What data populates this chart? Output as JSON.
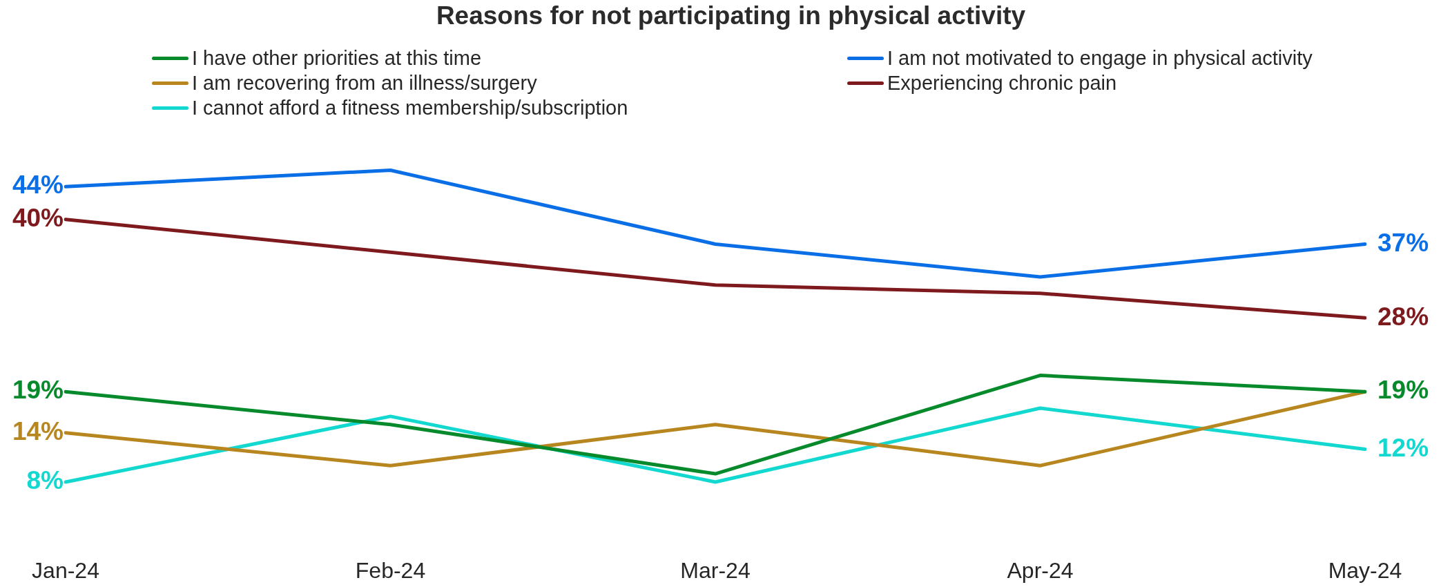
{
  "chart_data": {
    "type": "line",
    "title": "Reasons for not participating in physical activity",
    "categories": [
      "Jan-24",
      "Feb-24",
      "Mar-24",
      "Apr-24",
      "May-24"
    ],
    "series": [
      {
        "name": "I have other priorities at this time",
        "color": "#078a2b",
        "values": [
          19,
          15,
          9,
          21,
          19
        ],
        "value_labels": [
          "19%",
          null,
          null,
          null,
          "19%"
        ]
      },
      {
        "name": "I am not motivated to engage in physical activity",
        "color": "#0a6fe6",
        "values": [
          44,
          46,
          37,
          33,
          37
        ],
        "value_labels": [
          "44%",
          null,
          null,
          null,
          "37%"
        ]
      },
      {
        "name": "I am recovering from an illness/surgery",
        "color": "#b8861f",
        "values": [
          14,
          10,
          15,
          10,
          19
        ],
        "value_labels": [
          "14%",
          null,
          null,
          null,
          null
        ]
      },
      {
        "name": "Experiencing chronic pain",
        "color": "#7e1a1e",
        "values": [
          40,
          36,
          32,
          31,
          28
        ],
        "value_labels": [
          "40%",
          null,
          null,
          null,
          "28%"
        ]
      },
      {
        "name": "I cannot afford a fitness membership/subscription",
        "color": "#12d8cf",
        "values": [
          8,
          16,
          8,
          17,
          12
        ],
        "value_labels": [
          "8%",
          null,
          null,
          null,
          "12%"
        ]
      }
    ],
    "legend": "top",
    "grid": false,
    "marker": "none",
    "tick_labels": "x"
  }
}
